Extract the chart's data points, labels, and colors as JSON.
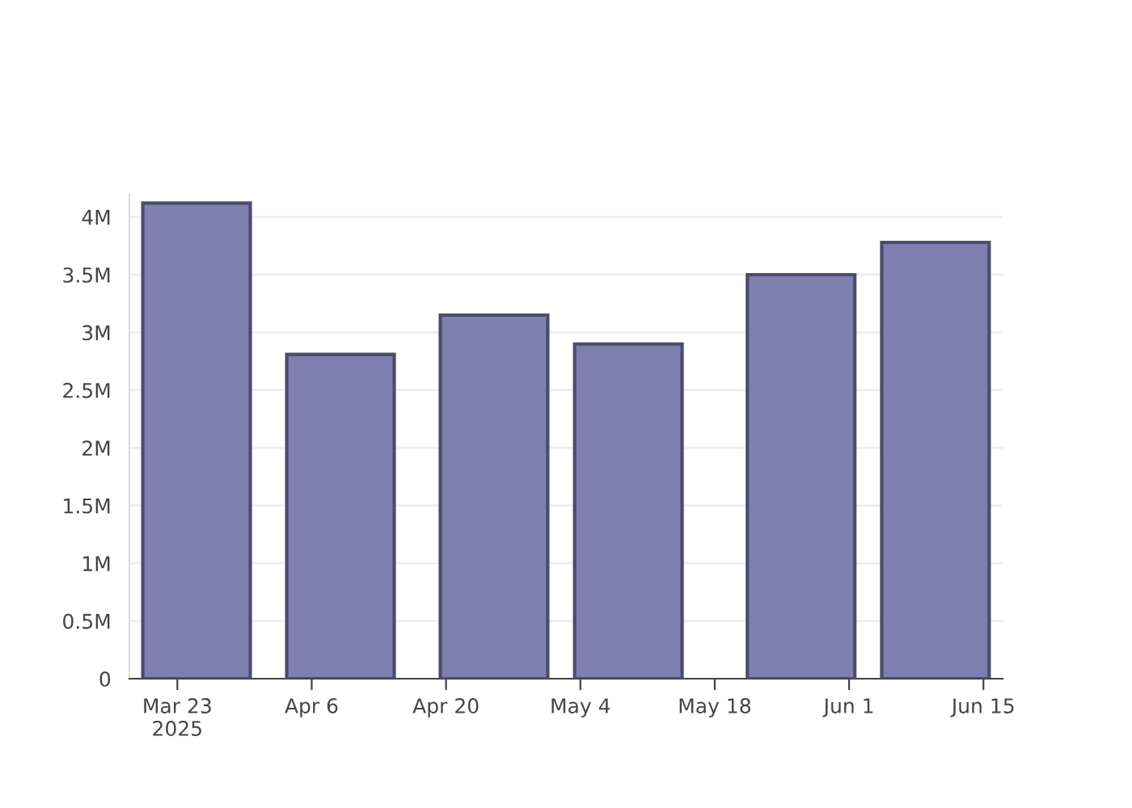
{
  "chart_data": {
    "type": "bar",
    "x": [
      "2025-03-25",
      "2025-04-09",
      "2025-04-25",
      "2025-05-09",
      "2025-05-27",
      "2025-06-10"
    ],
    "values": [
      4120000,
      2810000,
      3150000,
      2900000,
      3500000,
      3780000
    ],
    "color": "#7f7fb0",
    "xlim": [
      "2025-03-18",
      "2025-06-17"
    ],
    "xticks": [
      {
        "value": "2025-03-23",
        "label": "Mar 23\n2025"
      },
      {
        "value": "2025-04-06",
        "label": "Apr 6"
      },
      {
        "value": "2025-04-20",
        "label": "Apr 20"
      },
      {
        "value": "2025-05-04",
        "label": "May 4"
      },
      {
        "value": "2025-05-18",
        "label": "May 18"
      },
      {
        "value": "2025-06-01",
        "label": "Jun 1"
      },
      {
        "value": "2025-06-15",
        "label": "Jun 15"
      }
    ],
    "ylim": [
      0,
      4200000
    ],
    "yticks": [
      0,
      {
        "value": 500000,
        "label": "0.5M"
      },
      {
        "value": 1000000,
        "label": "1M"
      },
      {
        "value": 1500000,
        "label": "1.5M"
      },
      {
        "value": 2000000,
        "label": "2M"
      },
      {
        "value": 2500000,
        "label": "2.5M"
      },
      {
        "value": 3000000,
        "label": "3M"
      },
      {
        "value": 3500000,
        "label": "3.5M"
      },
      {
        "value": 4000000,
        "label": "4M"
      }
    ],
    "grid": "y"
  }
}
